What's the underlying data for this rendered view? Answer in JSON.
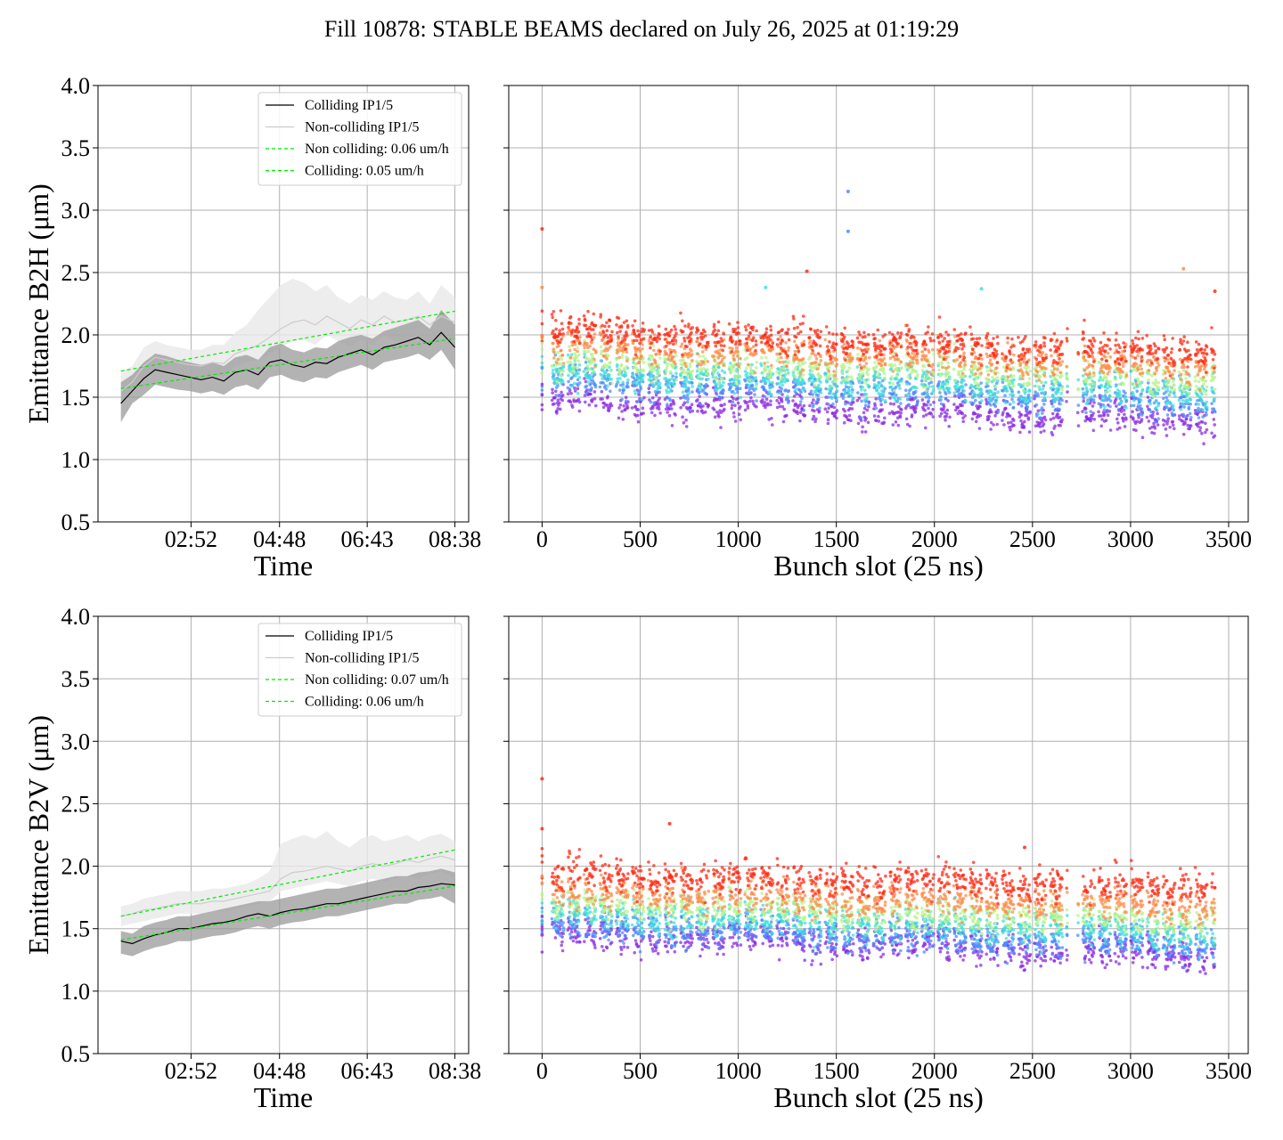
{
  "figure": {
    "title": "Fill 10878: STABLE BEAMS declared on July 26, 2025 at 01:19:29"
  },
  "colors": {
    "colliding_line": "#000000",
    "noncolliding_line": "#cccccc",
    "fit_line": "#00ee00",
    "colliding_band": "#9a9a9a",
    "noncolliding_band": "#e8e8e8",
    "grid": "#b0b0b0"
  },
  "chart_data": [
    {
      "id": "b2h-time",
      "type": "line",
      "xlabel": "Time",
      "ylabel": "Emittance B2H (μm)",
      "ylim": [
        0.5,
        4.0
      ],
      "yticks": [
        "0.5",
        "1.0",
        "1.5",
        "2.0",
        "2.5",
        "3.0",
        "3.5",
        "4.0"
      ],
      "xticks": [
        "02:52",
        "04:48",
        "06:43",
        "08:38"
      ],
      "grid": true,
      "legend_position": "top-right",
      "series": [
        {
          "name": "Colliding IP1/5",
          "style": "line",
          "x": [
            "01:20",
            "01:35",
            "01:50",
            "02:05",
            "02:20",
            "02:35",
            "02:50",
            "03:05",
            "03:20",
            "03:35",
            "03:50",
            "04:05",
            "04:20",
            "04:35",
            "04:50",
            "05:05",
            "05:20",
            "05:35",
            "05:50",
            "06:05",
            "06:20",
            "06:35",
            "06:50",
            "07:05",
            "07:20",
            "07:35",
            "07:50",
            "08:05",
            "08:20",
            "08:38"
          ],
          "values": [
            1.45,
            1.55,
            1.65,
            1.72,
            1.7,
            1.68,
            1.66,
            1.64,
            1.66,
            1.63,
            1.7,
            1.72,
            1.68,
            1.78,
            1.8,
            1.76,
            1.74,
            1.78,
            1.77,
            1.82,
            1.85,
            1.88,
            1.84,
            1.9,
            1.92,
            1.95,
            1.98,
            1.92,
            2.02,
            1.9
          ],
          "band_low": [
            1.3,
            1.45,
            1.52,
            1.6,
            1.58,
            1.56,
            1.55,
            1.53,
            1.55,
            1.52,
            1.58,
            1.6,
            1.56,
            1.66,
            1.68,
            1.64,
            1.62,
            1.66,
            1.65,
            1.7,
            1.73,
            1.76,
            1.72,
            1.78,
            1.8,
            1.82,
            1.85,
            1.8,
            1.88,
            1.72
          ],
          "band_high": [
            1.62,
            1.68,
            1.78,
            1.85,
            1.83,
            1.8,
            1.78,
            1.76,
            1.78,
            1.75,
            1.82,
            1.84,
            1.8,
            1.9,
            1.93,
            1.88,
            1.86,
            1.9,
            1.89,
            1.95,
            1.98,
            2.0,
            1.97,
            2.03,
            2.06,
            2.09,
            2.12,
            2.05,
            2.2,
            2.08
          ]
        },
        {
          "name": "Non-colliding IP1/5",
          "style": "line",
          "x": [
            "01:20",
            "01:35",
            "01:50",
            "02:05",
            "02:20",
            "02:35",
            "02:50",
            "03:05",
            "03:20",
            "03:35",
            "03:50",
            "04:05",
            "04:20",
            "04:35",
            "04:50",
            "05:05",
            "05:20",
            "05:35",
            "05:50",
            "06:05",
            "06:20",
            "06:35",
            "06:50",
            "07:05",
            "07:20",
            "07:35",
            "07:50",
            "08:05",
            "08:20",
            "08:38"
          ],
          "values": [
            1.55,
            1.62,
            1.75,
            1.82,
            1.8,
            1.78,
            1.76,
            1.75,
            1.78,
            1.77,
            1.85,
            1.88,
            1.92,
            1.98,
            2.05,
            2.1,
            2.12,
            2.08,
            2.15,
            2.1,
            2.05,
            2.12,
            2.08,
            2.15,
            2.1,
            2.12,
            2.15,
            2.08,
            2.15,
            2.1
          ],
          "band_low": [
            1.45,
            1.55,
            1.65,
            1.72,
            1.7,
            1.68,
            1.66,
            1.65,
            1.68,
            1.67,
            1.75,
            1.78,
            1.8,
            1.85,
            1.9,
            1.95,
            1.96,
            1.92,
            2.0,
            1.95,
            1.9,
            1.96,
            1.92,
            2.0,
            1.95,
            1.96,
            2.0,
            1.92,
            2.0,
            1.9
          ],
          "band_high": [
            1.7,
            1.75,
            1.9,
            1.95,
            1.92,
            1.9,
            1.88,
            1.88,
            1.92,
            1.92,
            2.02,
            2.08,
            2.2,
            2.3,
            2.4,
            2.45,
            2.42,
            2.35,
            2.4,
            2.3,
            2.25,
            2.32,
            2.28,
            2.35,
            2.3,
            2.28,
            2.35,
            2.25,
            2.4,
            2.3
          ]
        },
        {
          "name": "Non colliding: 0.06 um/h",
          "style": "dashed",
          "x": [
            "01:20",
            "08:38"
          ],
          "values": [
            1.71,
            2.19
          ]
        },
        {
          "name": "Colliding: 0.05 um/h",
          "style": "dashed",
          "x": [
            "01:20",
            "08:38"
          ],
          "values": [
            1.57,
            1.97
          ]
        }
      ]
    },
    {
      "id": "b2h-bunch",
      "type": "scatter",
      "xlabel": "Bunch slot (25 ns)",
      "ylabel": "",
      "ylim": [
        0.5,
        4.0
      ],
      "xlim": [
        -170,
        3600
      ],
      "xticks": [
        "0",
        "500",
        "1000",
        "1500",
        "2000",
        "2500",
        "3000",
        "3500"
      ],
      "grid": true,
      "bunch_trains": {
        "start": 50,
        "end": 3430,
        "train_length": 60,
        "gap": 22,
        "big_gaps": [
          [
            2680,
            2730
          ]
        ]
      },
      "color_levels": [
        {
          "color": "#ff2a14",
          "start_mean": 2.02,
          "end_mean": 1.84
        },
        {
          "color": "#ff8a4a",
          "start_mean": 1.9,
          "end_mean": 1.74
        },
        {
          "color": "#b8f28a",
          "start_mean": 1.78,
          "end_mean": 1.63
        },
        {
          "color": "#3ee0d8",
          "start_mean": 1.68,
          "end_mean": 1.52
        },
        {
          "color": "#4a8cff",
          "start_mean": 1.62,
          "end_mean": 1.45
        },
        {
          "color": "#8a2be2",
          "start_mean": 1.47,
          "end_mean": 1.3
        }
      ],
      "outliers": [
        {
          "x": 0,
          "y": 2.85,
          "color": "#ff2a14"
        },
        {
          "x": 0,
          "y": 2.38,
          "color": "#ff8a4a"
        },
        {
          "x": 1560,
          "y": 3.15,
          "color": "#4a8cff"
        },
        {
          "x": 1560,
          "y": 2.83,
          "color": "#4a8cff"
        },
        {
          "x": 1350,
          "y": 2.51,
          "color": "#ff2a14"
        },
        {
          "x": 3270,
          "y": 2.53,
          "color": "#ff8a4a"
        },
        {
          "x": 3430,
          "y": 2.35,
          "color": "#ff2a14"
        },
        {
          "x": 1140,
          "y": 2.38,
          "color": "#3ee0d8"
        },
        {
          "x": 2240,
          "y": 2.37,
          "color": "#3ee0d8"
        }
      ]
    },
    {
      "id": "b2v-time",
      "type": "line",
      "xlabel": "Time",
      "ylabel": "Emittance B2V (μm)",
      "ylim": [
        0.5,
        4.0
      ],
      "yticks": [
        "0.5",
        "1.0",
        "1.5",
        "2.0",
        "2.5",
        "3.0",
        "3.5",
        "4.0"
      ],
      "xticks": [
        "02:52",
        "04:48",
        "06:43",
        "08:38"
      ],
      "grid": true,
      "legend_position": "top-right",
      "series": [
        {
          "name": "Colliding IP1/5",
          "style": "line",
          "x": [
            "01:20",
            "01:35",
            "01:50",
            "02:05",
            "02:20",
            "02:35",
            "02:50",
            "03:05",
            "03:20",
            "03:35",
            "03:50",
            "04:05",
            "04:20",
            "04:35",
            "04:50",
            "05:05",
            "05:20",
            "05:35",
            "05:50",
            "06:05",
            "06:20",
            "06:35",
            "06:50",
            "07:05",
            "07:20",
            "07:35",
            "07:50",
            "08:05",
            "08:20",
            "08:38"
          ],
          "values": [
            1.4,
            1.38,
            1.42,
            1.45,
            1.47,
            1.5,
            1.5,
            1.52,
            1.54,
            1.55,
            1.57,
            1.6,
            1.62,
            1.6,
            1.63,
            1.65,
            1.66,
            1.68,
            1.7,
            1.7,
            1.72,
            1.74,
            1.76,
            1.78,
            1.8,
            1.8,
            1.83,
            1.84,
            1.86,
            1.85
          ],
          "band_low": [
            1.3,
            1.28,
            1.32,
            1.35,
            1.37,
            1.4,
            1.4,
            1.42,
            1.44,
            1.45,
            1.47,
            1.5,
            1.52,
            1.5,
            1.53,
            1.55,
            1.56,
            1.58,
            1.6,
            1.6,
            1.62,
            1.64,
            1.66,
            1.68,
            1.7,
            1.7,
            1.73,
            1.74,
            1.76,
            1.7
          ],
          "band_high": [
            1.48,
            1.46,
            1.52,
            1.55,
            1.57,
            1.6,
            1.6,
            1.62,
            1.64,
            1.66,
            1.68,
            1.7,
            1.72,
            1.72,
            1.74,
            1.76,
            1.78,
            1.8,
            1.82,
            1.82,
            1.84,
            1.86,
            1.88,
            1.9,
            1.92,
            1.92,
            1.95,
            1.96,
            1.98,
            1.95
          ]
        },
        {
          "name": "Non-colliding IP1/5",
          "style": "line",
          "x": [
            "01:20",
            "01:35",
            "01:50",
            "02:05",
            "02:20",
            "02:35",
            "02:50",
            "03:05",
            "03:20",
            "03:35",
            "03:50",
            "04:05",
            "04:20",
            "04:35",
            "04:50",
            "05:05",
            "05:20",
            "05:35",
            "05:50",
            "06:05",
            "06:20",
            "06:35",
            "06:50",
            "07:05",
            "07:20",
            "07:35",
            "07:50",
            "08:05",
            "08:20",
            "08:38"
          ],
          "values": [
            1.6,
            1.62,
            1.65,
            1.66,
            1.68,
            1.7,
            1.7,
            1.7,
            1.72,
            1.72,
            1.74,
            1.76,
            1.78,
            1.8,
            1.9,
            1.95,
            1.96,
            1.98,
            2.0,
            1.98,
            1.96,
            2.0,
            2.02,
            2.0,
            2.02,
            2.05,
            2.03,
            2.06,
            2.08,
            2.05
          ],
          "band_low": [
            1.52,
            1.54,
            1.56,
            1.58,
            1.6,
            1.62,
            1.62,
            1.62,
            1.64,
            1.64,
            1.66,
            1.68,
            1.7,
            1.72,
            1.8,
            1.82,
            1.84,
            1.86,
            1.88,
            1.86,
            1.84,
            1.88,
            1.9,
            1.88,
            1.9,
            1.92,
            1.9,
            1.94,
            1.96,
            1.9
          ],
          "band_high": [
            1.68,
            1.7,
            1.74,
            1.76,
            1.78,
            1.8,
            1.8,
            1.8,
            1.82,
            1.82,
            1.84,
            1.86,
            1.9,
            1.96,
            2.18,
            2.22,
            2.25,
            2.22,
            2.28,
            2.2,
            2.15,
            2.22,
            2.25,
            2.2,
            2.22,
            2.25,
            2.2,
            2.24,
            2.26,
            2.2
          ]
        },
        {
          "name": "Non colliding: 0.07 um/h",
          "style": "dashed",
          "x": [
            "01:20",
            "08:38"
          ],
          "values": [
            1.6,
            2.13
          ]
        },
        {
          "name": "Colliding: 0.06 um/h",
          "style": "dashed",
          "x": [
            "01:20",
            "08:38"
          ],
          "values": [
            1.41,
            1.84
          ]
        }
      ]
    },
    {
      "id": "b2v-bunch",
      "type": "scatter",
      "xlabel": "Bunch slot (25 ns)",
      "ylabel": "",
      "ylim": [
        0.5,
        4.0
      ],
      "xlim": [
        -170,
        3600
      ],
      "xticks": [
        "0",
        "500",
        "1000",
        "1500",
        "2000",
        "2500",
        "3000",
        "3500"
      ],
      "grid": true,
      "bunch_trains": {
        "start": 50,
        "end": 3430,
        "train_length": 60,
        "gap": 22,
        "big_gaps": [
          [
            2680,
            2730
          ]
        ]
      },
      "color_levels": [
        {
          "color": "#ff2a14",
          "start_mean": 1.92,
          "end_mean": 1.82
        },
        {
          "color": "#ff8a4a",
          "start_mean": 1.78,
          "end_mean": 1.66
        },
        {
          "color": "#b8f28a",
          "start_mean": 1.68,
          "end_mean": 1.55
        },
        {
          "color": "#3ee0d8",
          "start_mean": 1.6,
          "end_mean": 1.45
        },
        {
          "color": "#4a8cff",
          "start_mean": 1.52,
          "end_mean": 1.35
        },
        {
          "color": "#8a2be2",
          "start_mean": 1.45,
          "end_mean": 1.27
        }
      ],
      "outliers": [
        {
          "x": 0,
          "y": 2.7,
          "color": "#ff2a14"
        },
        {
          "x": 0,
          "y": 2.3,
          "color": "#ff2a14"
        },
        {
          "x": 0,
          "y": 1.45,
          "color": "#8a2be2"
        },
        {
          "x": 650,
          "y": 2.34,
          "color": "#ff2a14"
        },
        {
          "x": 2460,
          "y": 2.15,
          "color": "#ff2a14"
        }
      ]
    }
  ]
}
